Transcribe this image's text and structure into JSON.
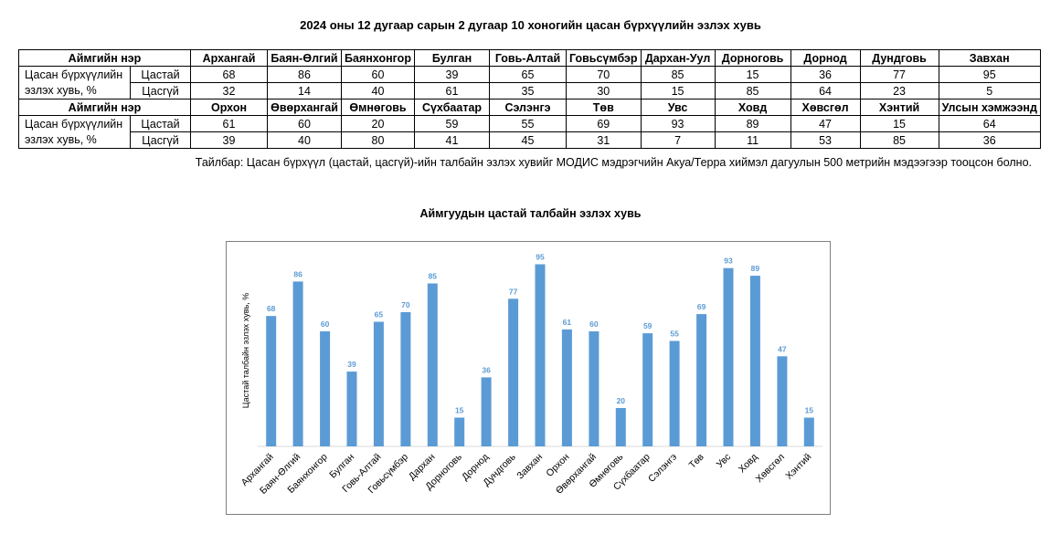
{
  "title": "2024 оны 12 дугаар сарын 2 дугаар 10 хоногийн цасан бүрхүүлийн эзлэх хувь",
  "table": {
    "header_label": "Аймгийн нэр",
    "row_label_line1": "Цасан бүрхүүлийн",
    "row_label_line2": "эзлэх хувь, %",
    "sub_label_1": "Цастай",
    "sub_label_2": "Цасгүй",
    "block1": {
      "names": [
        "Архангай",
        "Баян-Өлгий",
        "Баянхонгор",
        "Булган",
        "Говь-Алтай",
        "Говьсүмбэр",
        "Дархан-Уул",
        "Дорноговь",
        "Дорнод",
        "Дундговь",
        "Завхан"
      ],
      "snow": [
        "68",
        "86",
        "60",
        "39",
        "65",
        "70",
        "85",
        "15",
        "36",
        "77",
        "95"
      ],
      "nosnow": [
        "32",
        "14",
        "40",
        "61",
        "35",
        "30",
        "15",
        "85",
        "64",
        "23",
        "5"
      ]
    },
    "block2": {
      "names": [
        "Орхон",
        "Өвөрхангай",
        "Өмнөговь",
        "Сүхбаатар",
        "Сэлэнгэ",
        "Төв",
        "Увс",
        "Ховд",
        "Хөвсгөл",
        "Хэнтий",
        "Улсын хэмжээнд"
      ],
      "snow": [
        "61",
        "60",
        "20",
        "59",
        "55",
        "69",
        "93",
        "89",
        "47",
        "15",
        "64"
      ],
      "nosnow": [
        "39",
        "40",
        "80",
        "41",
        "45",
        "31",
        "7",
        "11",
        "53",
        "85",
        "36"
      ]
    }
  },
  "note": "Тайлбар: Цасан бүрхүүл (цастай, цасгүй)-ийн талбайн эзлэх хувийг МОДИС мэдрэгчийн Акуа/Терра хиймэл дагуулын 500 метрийн мэдээгээр тооцсон болно.",
  "chart_data": {
    "type": "bar",
    "title": "Аймгуудын цастай талбайн эзлэх хувь",
    "ylabel": "Цастай талбайн эзлэх хувь, %",
    "xlabel": "",
    "categories": [
      "Архангай",
      "Баян-Өлгий",
      "Баянхонгор",
      "Булган",
      "Говь-Алтай",
      "Говьсүмбэр",
      "Дархан",
      "Дорноговь",
      "Дорнод",
      "Дундговь",
      "Завхан",
      "Орхон",
      "Өвөрхангай",
      "Өмнөговь",
      "Сүхбаатар",
      "Сэлэнгэ",
      "Төв",
      "Увс",
      "Ховд",
      "Хөвсгөл",
      "Хэнтий"
    ],
    "values": [
      68,
      86,
      60,
      39,
      65,
      70,
      85,
      15,
      36,
      77,
      95,
      61,
      60,
      20,
      59,
      55,
      69,
      93,
      89,
      47,
      15
    ],
    "ylim": [
      0,
      100
    ],
    "grid": false,
    "bar_color": "#5b9bd5",
    "label_color": "#5b9bd5"
  }
}
